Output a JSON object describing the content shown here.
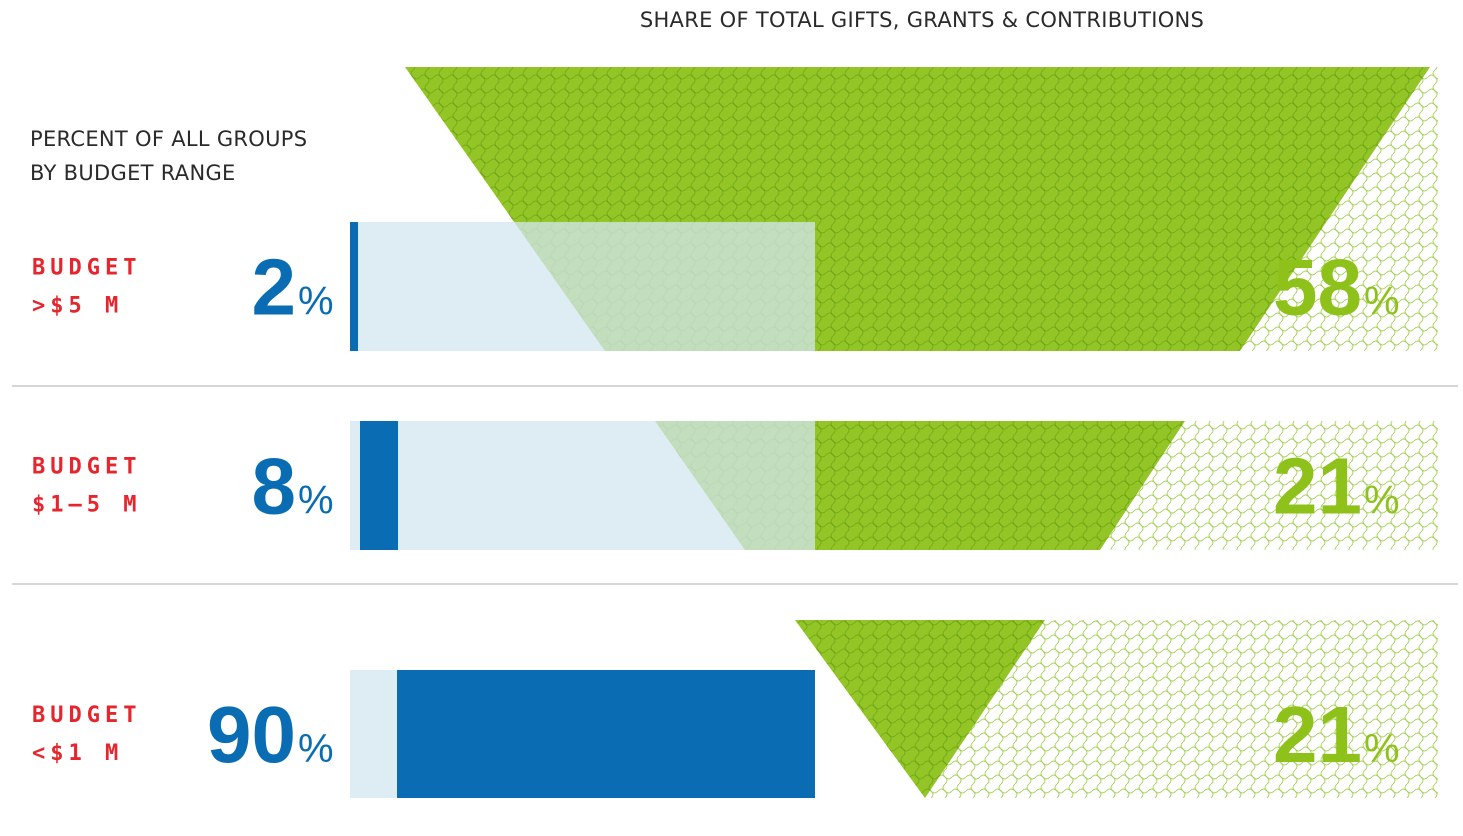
{
  "chart_data": {
    "type": "bar",
    "title": "SHARE OF TOTAL GIFTS, GRANTS & CONTRIBUTIONS",
    "subtitle_lines": [
      "PERCENT OF ALL GROUPS",
      "BY BUDGET RANGE"
    ],
    "categories": [
      {
        "line1": "BUDGET",
        "line2": ">$5 M"
      },
      {
        "line1": "BUDGET",
        "line2": "$1–5 M"
      },
      {
        "line1": "BUDGET",
        "line2": "<$1 M"
      }
    ],
    "percent_sign": "%",
    "series": [
      {
        "values": [
          2,
          8,
          90
        ],
        "labels": [
          "2",
          "8",
          "90"
        ]
      },
      {
        "values": [
          58,
          21,
          21
        ],
        "labels": [
          "58",
          "21",
          "21"
        ]
      }
    ],
    "ylim": [
      0,
      100
    ]
  },
  "colors": {
    "blue": "#0a6db3",
    "light_blue": "#d3e6f0",
    "green": "#8ec21a",
    "light_green": "#c4e08a",
    "red": "#e5262e",
    "divider": "#d6d6d6",
    "title": "#2a2a2a"
  }
}
